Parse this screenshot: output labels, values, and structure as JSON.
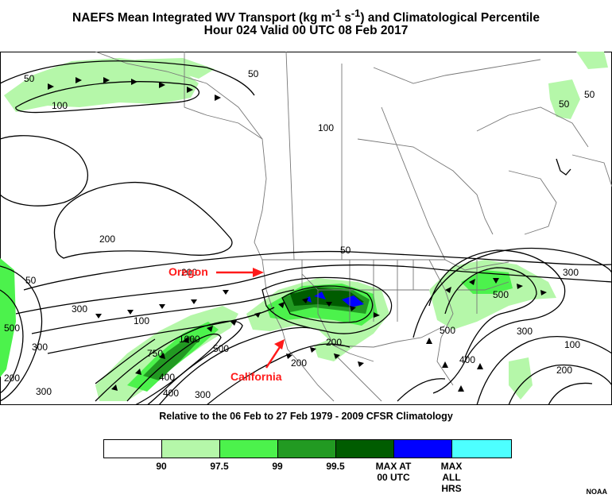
{
  "title": {
    "main": "NAEFS Mean Integrated WV Transport (kg m-1 s-1) and Climatological Percentile",
    "valid": "Hour 024 Valid 00 UTC 08 Feb 2017"
  },
  "subtitle": "Relative to the 06 Feb to 27 Feb 1979 - 2009 CFSR Climatology",
  "annotations": {
    "oregon": "Oregon",
    "california": "California"
  },
  "contour_labels": [
    "50",
    "100",
    "50",
    "50",
    "50",
    "100",
    "50",
    "50",
    "200",
    "300",
    "500",
    "1000",
    "750",
    "300",
    "400",
    "200",
    "300",
    "400",
    "500",
    "100",
    "200",
    "200",
    "300",
    "300",
    "500",
    "100",
    "200",
    "400",
    "500",
    "300",
    "200"
  ],
  "legend": {
    "colors": [
      "#ffffff",
      "#b5f7a9",
      "#4cf24c",
      "#229a22",
      "#005c00",
      "#0000ff",
      "#4dffff"
    ],
    "labels": [
      "90",
      "97.5",
      "99",
      "99.5",
      "MAX AT 00 UTC",
      "MAX ALL HRS"
    ]
  },
  "credit": "NOAA"
}
